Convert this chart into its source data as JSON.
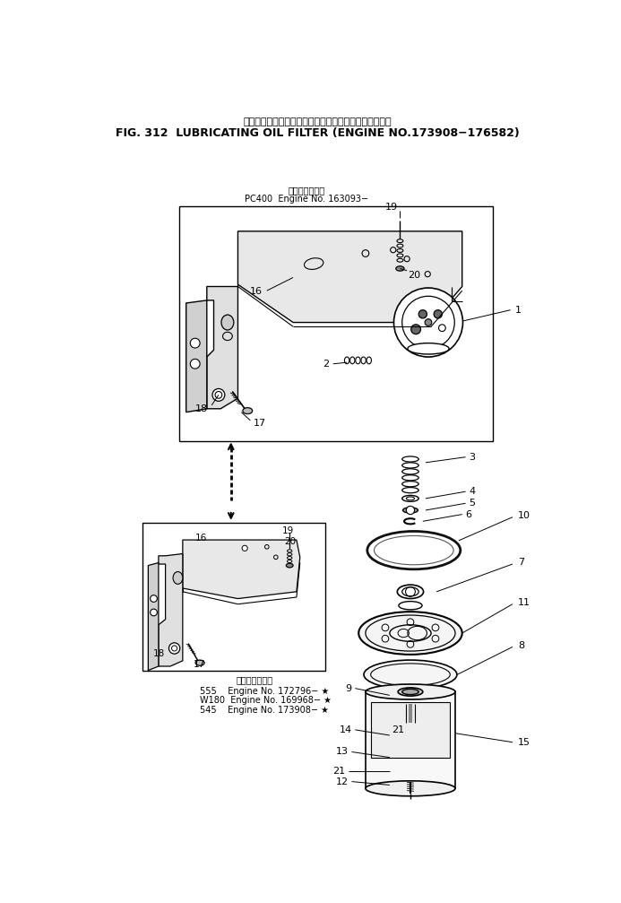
{
  "title_japanese": "ルーブリケーティングオイルフィルタ　適　用　号　機",
  "title_english": "FIG. 312  LUBRICATING OIL FILTER (ENGINE NO.173908−176582)",
  "subtitle_top_ja": "適　用　号　機",
  "subtitle_pc400": "PC400  Engine No. 163093−",
  "subtitle_bottom_label": "適　用　号　機",
  "subtitle_555": "555    Engine No. 172796− ★",
  "subtitle_w180": "W180  Engine No. 169968− ★",
  "subtitle_545": "545    Engine No. 173908− ★",
  "bg_color": "#ffffff"
}
